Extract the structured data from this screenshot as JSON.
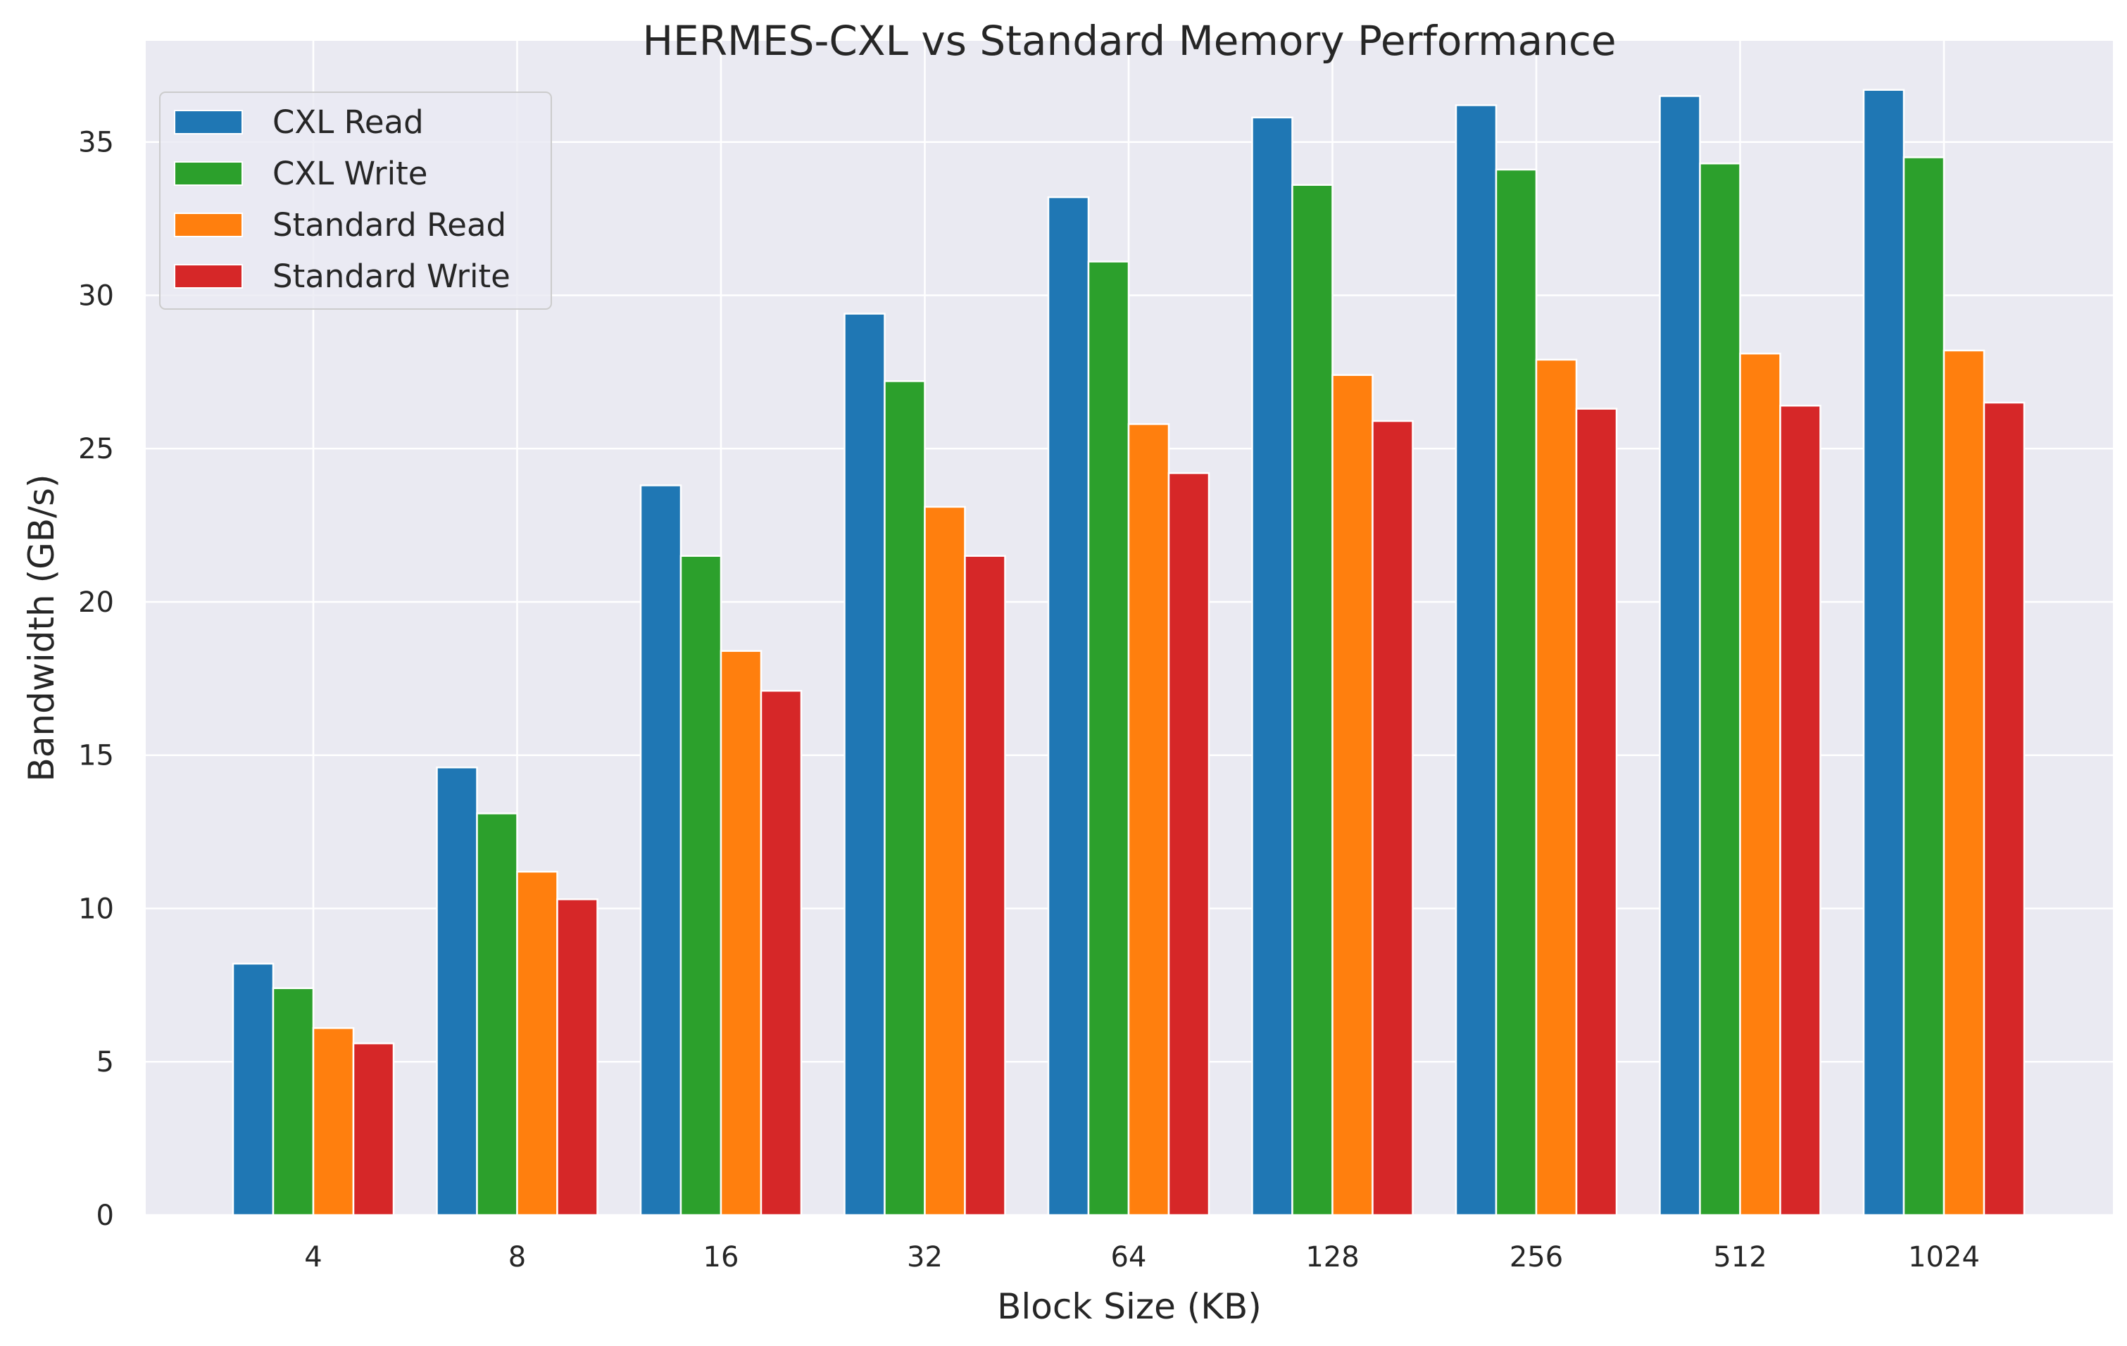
{
  "chart_data": {
    "type": "bar",
    "title": "HERMES-CXL vs Standard Memory Performance",
    "xlabel": "Block Size (KB)",
    "ylabel": "Bandwidth (GB/s)",
    "categories": [
      "4",
      "8",
      "16",
      "32",
      "64",
      "128",
      "256",
      "512",
      "1024"
    ],
    "ylim": [
      0,
      38.3
    ],
    "yticks": [
      0,
      5,
      10,
      15,
      20,
      25,
      30,
      35
    ],
    "grid": true,
    "legend_position": "top-left",
    "series": [
      {
        "name": "CXL Read",
        "color": "#1f77b4",
        "values": [
          8.2,
          14.6,
          23.8,
          29.4,
          33.2,
          35.8,
          36.2,
          36.5,
          36.7
        ]
      },
      {
        "name": "CXL Write",
        "color": "#2ca02c",
        "values": [
          7.4,
          13.1,
          21.5,
          27.2,
          31.1,
          33.6,
          34.1,
          34.3,
          34.5
        ]
      },
      {
        "name": "Standard Read",
        "color": "#ff7f0e",
        "values": [
          6.1,
          11.2,
          18.4,
          23.1,
          25.8,
          27.4,
          27.9,
          28.1,
          28.2
        ]
      },
      {
        "name": "Standard Write",
        "color": "#d62728",
        "values": [
          5.6,
          10.3,
          17.1,
          21.5,
          24.2,
          25.9,
          26.3,
          26.4,
          26.5
        ]
      }
    ]
  }
}
